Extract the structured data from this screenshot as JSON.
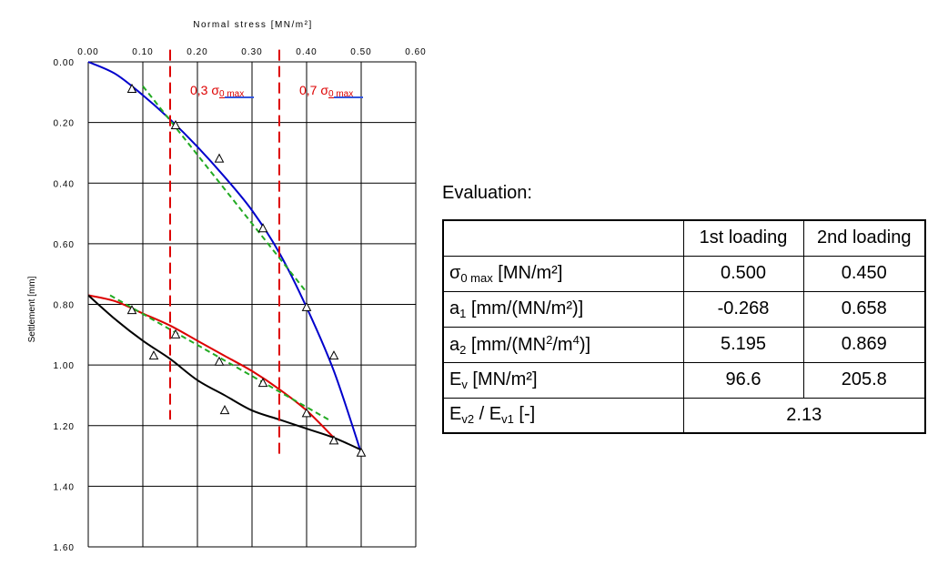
{
  "chart_data": {
    "type": "line",
    "xlabel": "Normal stress [MN/m²]",
    "ylabel": "Settlement [mm]",
    "xlim": [
      0.0,
      0.6
    ],
    "ylim": [
      0.0,
      1.6
    ],
    "y_inverted": true,
    "x_axis_position": "top",
    "grid": true,
    "x_ticks": [
      "0.00",
      "0.10",
      "0.20",
      "0.30",
      "0.40",
      "0.50",
      "0.60"
    ],
    "y_ticks": [
      "0.00",
      "0.20",
      "0.40",
      "0.60",
      "0.80",
      "1.00",
      "1.20",
      "1.40",
      "1.60"
    ],
    "series": [
      {
        "role": "first-loading-curve",
        "color": "#0000cc",
        "style": "solid",
        "x": [
          0.0,
          0.05,
          0.1,
          0.15,
          0.2,
          0.25,
          0.3,
          0.35,
          0.4,
          0.45,
          0.5
        ],
        "y": [
          0.0,
          0.04,
          0.11,
          0.19,
          0.28,
          0.38,
          0.49,
          0.63,
          0.81,
          1.02,
          1.29
        ]
      },
      {
        "role": "second-loading-curve",
        "color": "#dd0000",
        "style": "solid",
        "x": [
          0.0,
          0.05,
          0.1,
          0.15,
          0.2,
          0.25,
          0.3,
          0.35,
          0.4,
          0.45
        ],
        "y": [
          0.77,
          0.79,
          0.83,
          0.87,
          0.92,
          0.97,
          1.02,
          1.08,
          1.15,
          1.24
        ]
      },
      {
        "role": "unloading-curve",
        "color": "#000000",
        "style": "solid",
        "x": [
          0.0,
          0.05,
          0.1,
          0.15,
          0.2,
          0.25,
          0.3,
          0.35,
          0.4,
          0.45,
          0.5
        ],
        "y": [
          0.77,
          0.85,
          0.92,
          0.98,
          1.05,
          1.1,
          1.15,
          1.18,
          1.21,
          1.24,
          1.28
        ]
      },
      {
        "role": "first-loading-secant",
        "color": "#22aa22",
        "style": "dashed",
        "x": [
          0.1,
          0.4
        ],
        "y": [
          0.08,
          0.76
        ]
      },
      {
        "role": "second-loading-secant",
        "color": "#22aa22",
        "style": "dashed",
        "x": [
          0.04,
          0.44
        ],
        "y": [
          0.77,
          1.18
        ]
      }
    ],
    "points": [
      {
        "x": 0.08,
        "y": 0.09
      },
      {
        "x": 0.16,
        "y": 0.21
      },
      {
        "x": 0.24,
        "y": 0.32
      },
      {
        "x": 0.32,
        "y": 0.55
      },
      {
        "x": 0.4,
        "y": 0.81
      },
      {
        "x": 0.45,
        "y": 0.97
      },
      {
        "x": 0.5,
        "y": 1.29
      },
      {
        "x": 0.08,
        "y": 0.82
      },
      {
        "x": 0.16,
        "y": 0.9
      },
      {
        "x": 0.24,
        "y": 0.99
      },
      {
        "x": 0.32,
        "y": 1.06
      },
      {
        "x": 0.4,
        "y": 1.16
      },
      {
        "x": 0.45,
        "y": 1.25
      },
      {
        "x": 0.12,
        "y": 0.97
      },
      {
        "x": 0.25,
        "y": 1.15
      }
    ],
    "vlines": [
      {
        "x": 0.15,
        "y_from": 0.2,
        "y_to": 1.18,
        "color": "#dd0000"
      },
      {
        "x": 0.35,
        "y_from": 0.2,
        "y_to": 1.3,
        "color": "#dd0000"
      }
    ],
    "annotations": [
      {
        "prefix": "0,3 ",
        "symbol": "σ",
        "sub": "0 max"
      },
      {
        "prefix": "0,7 ",
        "symbol": "σ",
        "sub": "0 max"
      }
    ]
  },
  "evaluation": {
    "title": "Evaluation:",
    "col1": "1st loading",
    "col2": "2nd loading",
    "rows": [
      {
        "sym": "σ",
        "sub": "0 max",
        "unit": " [MN/m²]",
        "v1": "0.500",
        "v2": "0.450"
      },
      {
        "sym": "a",
        "sub": "1",
        "unit": " [mm/(MN/m²)]",
        "v1": "-0.268",
        "v2": "0.658"
      },
      {
        "sym": "a",
        "sub": "2",
        "unit_a": " [mm/(MN",
        "sup_a": "2",
        "unit_b": "/m",
        "sup_b": "4",
        "unit_c": ")]",
        "v1": "5.195",
        "v2": "0.869"
      },
      {
        "sym": "E",
        "sub": "v",
        "unit": " [MN/m²]",
        "v1": "96.6",
        "v2": "205.8"
      },
      {
        "sym_a": "E",
        "sub_a": "v2",
        "mid": " / E",
        "sub_b": "v1",
        "unit": " [-]",
        "v": "2.13"
      }
    ]
  }
}
